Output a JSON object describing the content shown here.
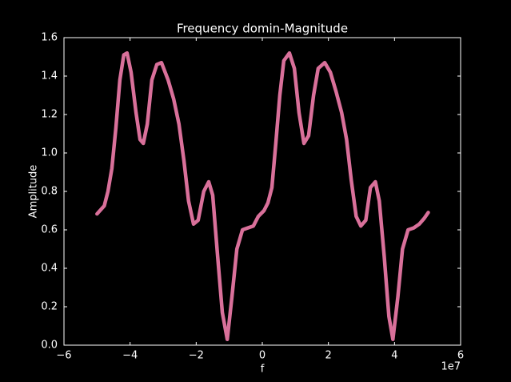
{
  "chart_data": {
    "type": "line",
    "title": "Frequency domin-Magnitude",
    "x_label": "f",
    "y_label": "Amplitude",
    "x_offset_text": "1e7",
    "xlim": [
      -6,
      6
    ],
    "ylim": [
      0,
      1.6
    ],
    "xticks": [
      {
        "value": -6,
        "label": "−6"
      },
      {
        "value": -4,
        "label": "−4"
      },
      {
        "value": -2,
        "label": "−2"
      },
      0,
      2,
      4,
      6
    ],
    "yticks": [
      {
        "value": 0,
        "label": "0.0"
      },
      0.2,
      0.4,
      0.6,
      0.8,
      {
        "value": 1,
        "label": "1.0"
      },
      1.2,
      1.4,
      1.6
    ],
    "series": [
      {
        "color": "#d9709a",
        "x": [
          -5.0,
          -4.78,
          -4.67,
          -4.55,
          -4.43,
          -4.31,
          -4.19,
          -4.09,
          -3.97,
          -3.82,
          -3.7,
          -3.6,
          -3.48,
          -3.34,
          -3.19,
          -3.05,
          -2.85,
          -2.68,
          -2.52,
          -2.37,
          -2.23,
          -2.08,
          -1.94,
          -1.77,
          -1.62,
          -1.5,
          -1.35,
          -1.21,
          -1.06,
          -0.92,
          -0.77,
          -0.6,
          -0.44,
          -0.27,
          -0.12,
          0.05,
          0.17,
          0.29,
          0.41,
          0.53,
          0.65,
          0.82,
          0.97,
          1.11,
          1.26,
          1.4,
          1.55,
          1.69,
          1.89,
          2.06,
          2.23,
          2.4,
          2.55,
          2.69,
          2.84,
          2.98,
          3.13,
          3.27,
          3.42,
          3.54,
          3.69,
          3.83,
          3.95,
          4.1,
          4.24,
          4.41,
          4.58,
          4.75,
          4.9,
          5.02
        ],
        "values": [
          0.683,
          0.725,
          0.8,
          0.92,
          1.13,
          1.38,
          1.51,
          1.52,
          1.42,
          1.21,
          1.07,
          1.05,
          1.15,
          1.38,
          1.46,
          1.47,
          1.38,
          1.28,
          1.15,
          0.96,
          0.75,
          0.63,
          0.65,
          0.8,
          0.85,
          0.78,
          0.46,
          0.17,
          0.03,
          0.25,
          0.5,
          0.6,
          0.61,
          0.62,
          0.67,
          0.7,
          0.74,
          0.82,
          1.05,
          1.3,
          1.48,
          1.52,
          1.44,
          1.21,
          1.05,
          1.09,
          1.3,
          1.44,
          1.47,
          1.42,
          1.32,
          1.21,
          1.07,
          0.86,
          0.67,
          0.62,
          0.65,
          0.82,
          0.85,
          0.75,
          0.46,
          0.15,
          0.03,
          0.25,
          0.5,
          0.6,
          0.61,
          0.63,
          0.66,
          0.69
        ]
      }
    ]
  }
}
